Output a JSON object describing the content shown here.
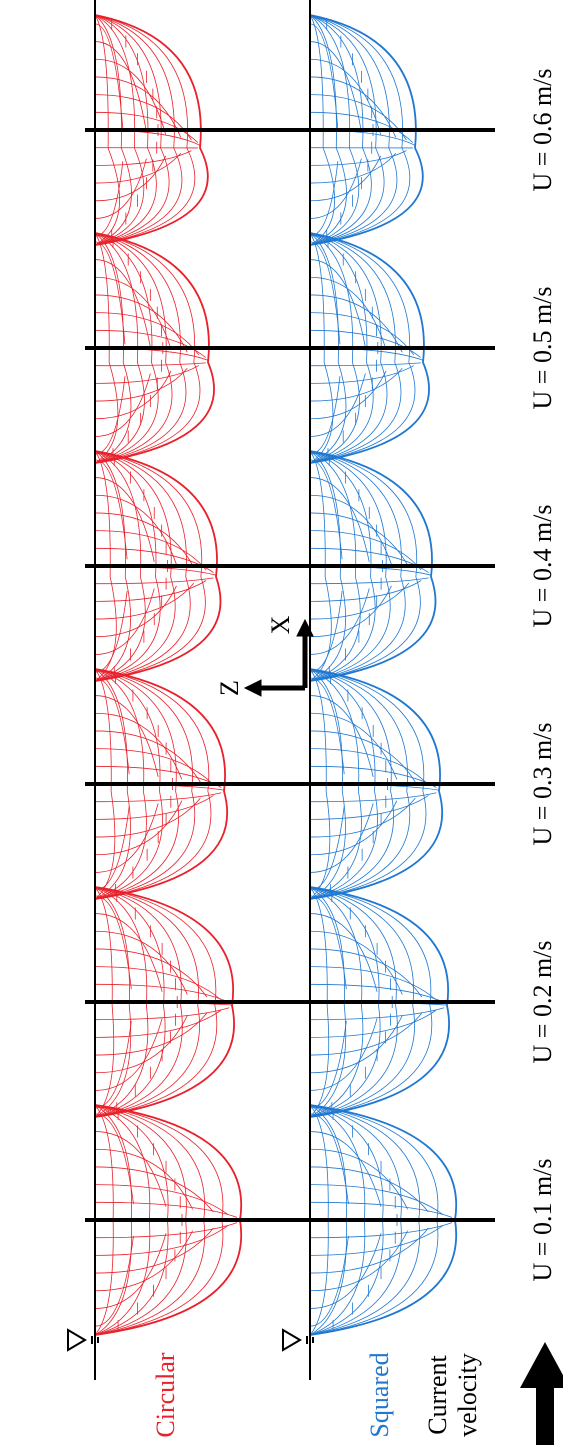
{
  "rows": [
    {
      "label": "Circular"
    },
    {
      "label": "Squared"
    }
  ],
  "legend": {
    "lines": [
      "Current",
      "velocity"
    ]
  },
  "columns": [
    {
      "label": "U = 0.1 m/s"
    },
    {
      "label": "U = 0.2 m/s"
    },
    {
      "label": "U = 0.3 m/s"
    },
    {
      "label": "U = 0.4 m/s"
    },
    {
      "label": "U = 0.5 m/s"
    },
    {
      "label": "U = 0.6 m/s"
    }
  ],
  "axes": {
    "z": "Z",
    "x": "X"
  }
}
